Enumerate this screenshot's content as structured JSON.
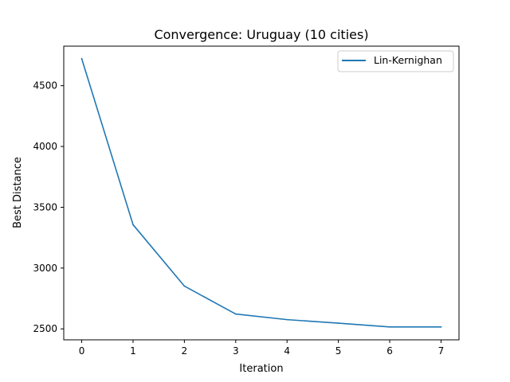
{
  "chart_data": {
    "type": "line",
    "title": "Convergence: Uruguay (10 cities)",
    "xlabel": "Iteration",
    "ylabel": "Best Distance",
    "x": [
      0,
      1,
      2,
      3,
      4,
      5,
      6,
      7
    ],
    "series": [
      {
        "name": "Lin-Kernighan",
        "color": "#1f77b4",
        "values": [
          4722,
          3357,
          2852,
          2622,
          2576,
          2547,
          2516,
          2516
        ]
      }
    ],
    "xlim": [
      -0.35,
      7.35
    ],
    "ylim": [
      2410,
      4825
    ],
    "xticks": [
      "0",
      "1",
      "2",
      "3",
      "4",
      "5",
      "6",
      "7"
    ],
    "yticks": [
      "2500",
      "3000",
      "3500",
      "4000",
      "4500"
    ],
    "grid": false,
    "legend_position": "top-right"
  }
}
